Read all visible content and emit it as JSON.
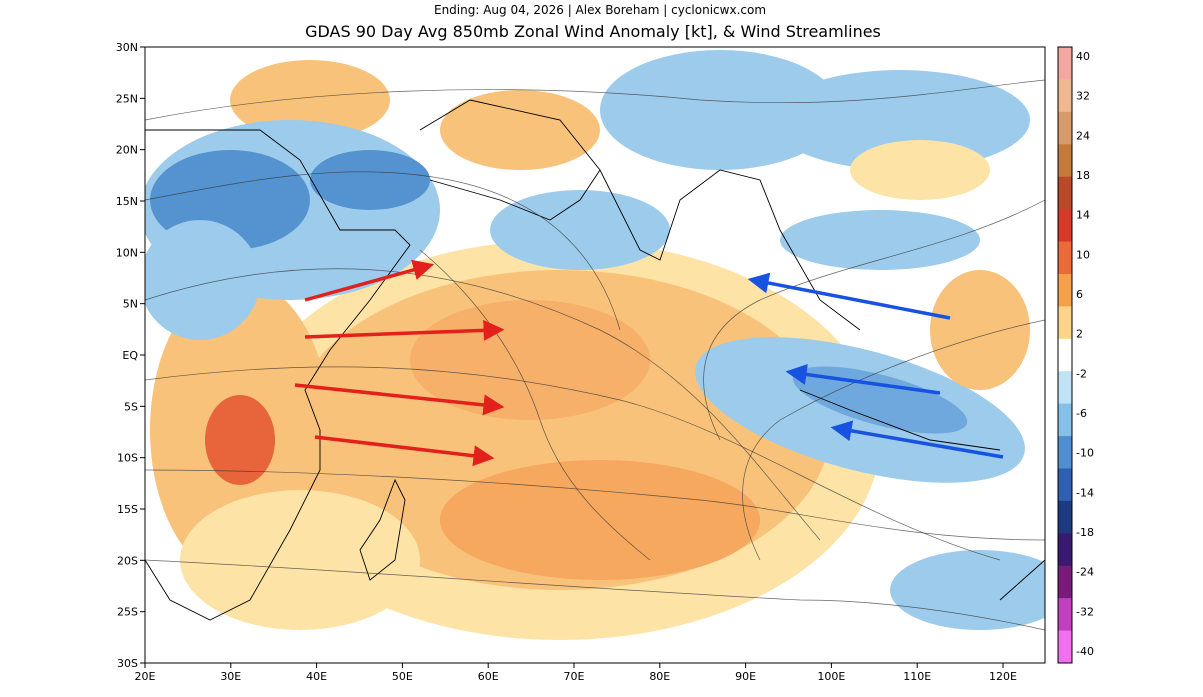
{
  "header": {
    "subtitle": "Ending: Aug 04, 2026 | Alex Boreham | cyclonicwx.com",
    "title": "GDAS 90 Day Avg 850mb Zonal Wind Anomaly [kt], & Wind Streamlines"
  },
  "map": {
    "lat_labels": [
      "30N",
      "25N",
      "20N",
      "15N",
      "10N",
      "5N",
      "EQ",
      "5S",
      "10S",
      "15S",
      "20S",
      "25S",
      "30S"
    ],
    "lon_labels": [
      "20E",
      "30E",
      "40E",
      "50E",
      "60E",
      "70E",
      "80E",
      "90E",
      "100E",
      "110E",
      "120E"
    ]
  },
  "colorbar": {
    "labels": [
      "40",
      "32",
      "24",
      "18",
      "14",
      "10",
      "6",
      "2",
      "-2",
      "-6",
      "-10",
      "-14",
      "-18",
      "-24",
      "-32",
      "-40"
    ]
  }
}
